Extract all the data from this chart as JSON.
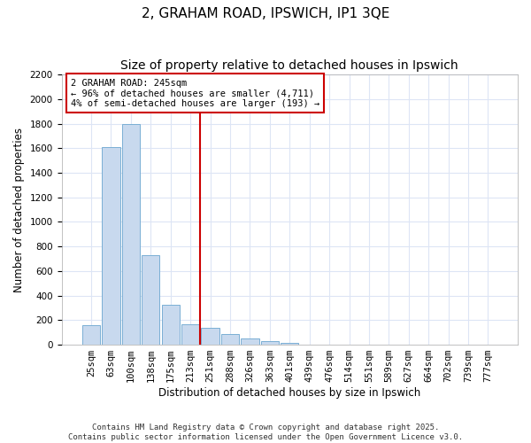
{
  "title": "2, GRAHAM ROAD, IPSWICH, IP1 3QE",
  "subtitle": "Size of property relative to detached houses in Ipswich",
  "xlabel": "Distribution of detached houses by size in Ipswich",
  "ylabel": "Number of detached properties",
  "bar_color": "#c8d9ee",
  "bar_edge_color": "#7aafd4",
  "annotation_box_color": "#ffffff",
  "annotation_edge_color": "#cc0000",
  "vline_color": "#cc0000",
  "background_color": "#ffffff",
  "grid_color": "#dde5f5",
  "categories": [
    "25sqm",
    "63sqm",
    "100sqm",
    "138sqm",
    "175sqm",
    "213sqm",
    "251sqm",
    "288sqm",
    "326sqm",
    "363sqm",
    "401sqm",
    "439sqm",
    "476sqm",
    "514sqm",
    "551sqm",
    "589sqm",
    "627sqm",
    "664sqm",
    "702sqm",
    "739sqm",
    "777sqm"
  ],
  "values": [
    160,
    1610,
    1800,
    730,
    325,
    165,
    140,
    90,
    50,
    30,
    15,
    0,
    0,
    0,
    0,
    0,
    0,
    0,
    0,
    0,
    0
  ],
  "vline_index": 6,
  "ylim": [
    0,
    2200
  ],
  "yticks": [
    0,
    200,
    400,
    600,
    800,
    1000,
    1200,
    1400,
    1600,
    1800,
    2000,
    2200
  ],
  "annotation_line1": "2 GRAHAM ROAD: 245sqm",
  "annotation_line2": "← 96% of detached houses are smaller (4,711)",
  "annotation_line3": "4% of semi-detached houses are larger (193) →",
  "footer_line1": "Contains HM Land Registry data © Crown copyright and database right 2025.",
  "footer_line2": "Contains public sector information licensed under the Open Government Licence v3.0.",
  "title_fontsize": 11,
  "subtitle_fontsize": 10,
  "axis_label_fontsize": 8.5,
  "tick_fontsize": 7.5,
  "annotation_fontsize": 7.5,
  "footer_fontsize": 6.5
}
